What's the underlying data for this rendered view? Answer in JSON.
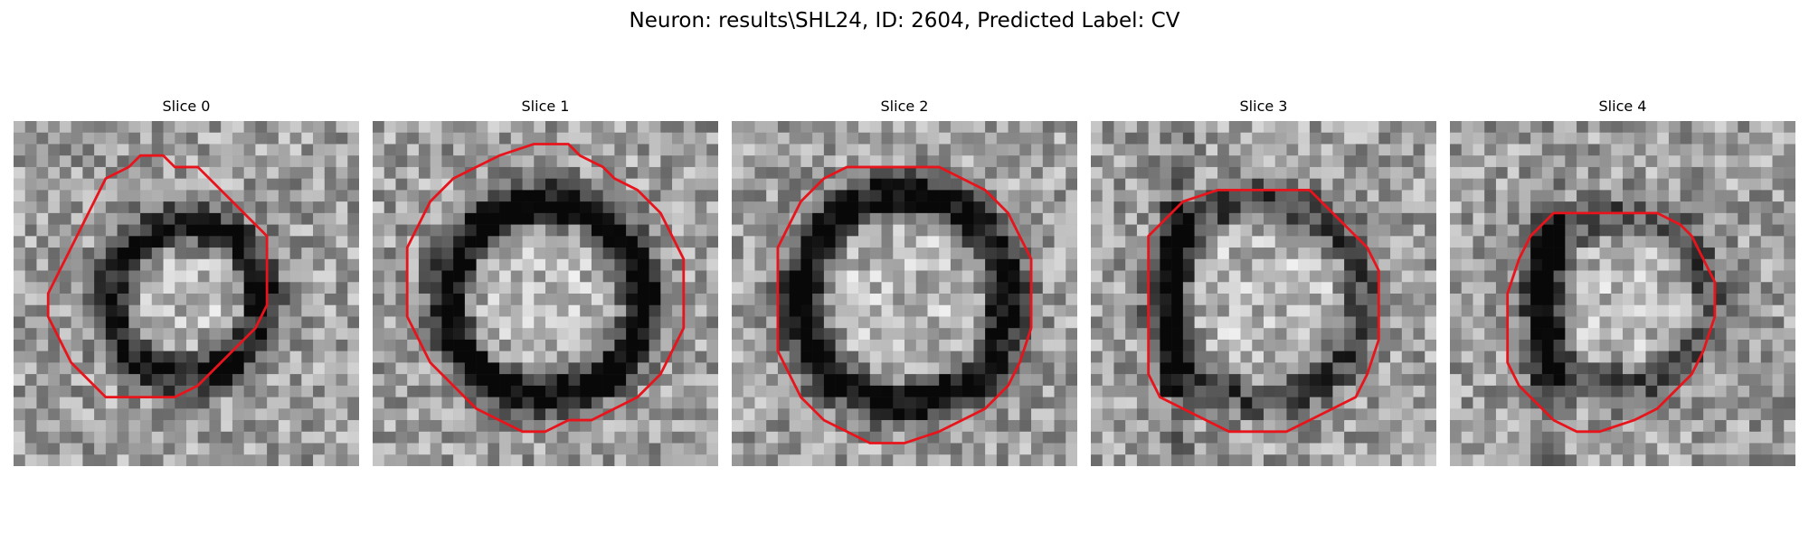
{
  "figure": {
    "title": "Neuron: results\\SHL24, ID: 2604, Predicted Label: CV"
  },
  "colors": {
    "contour": "#e8141c",
    "background": "#ffffff"
  },
  "slices": [
    {
      "title": "Slice 0",
      "dark_ring": 0.55,
      "ring_radius": 0.44,
      "side_dark": 0.0
    },
    {
      "title": "Slice 1",
      "dark_ring": 0.7,
      "ring_radius": 0.56,
      "side_dark": 0.0
    },
    {
      "title": "Slice 2",
      "dark_ring": 0.65,
      "ring_radius": 0.6,
      "side_dark": 0.2
    },
    {
      "title": "Slice 3",
      "dark_ring": 0.35,
      "ring_radius": 0.58,
      "side_dark": 0.9
    },
    {
      "title": "Slice 4",
      "dark_ring": 0.3,
      "ring_radius": 0.5,
      "side_dark": 0.9
    }
  ]
}
